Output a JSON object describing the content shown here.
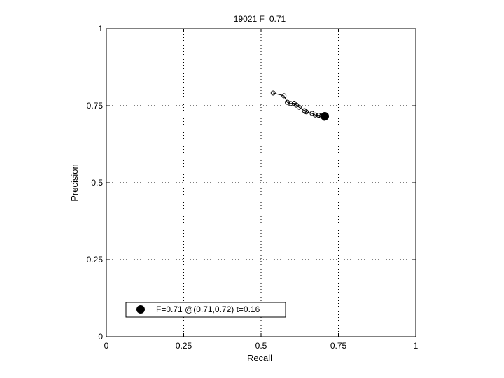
{
  "chart_data": {
    "type": "scatter",
    "title": "19021 F=0.71",
    "xlabel": "Recall",
    "ylabel": "Precision",
    "xlim": [
      0,
      1
    ],
    "ylim": [
      0,
      1
    ],
    "xticks": [
      0,
      0.25,
      0.5,
      0.75,
      1
    ],
    "yticks": [
      0,
      0.25,
      0.5,
      0.75,
      1
    ],
    "xtick_labels": [
      "0",
      "0.25",
      "0.5",
      "0.75",
      "1"
    ],
    "ytick_labels": [
      "0",
      "0.25",
      "0.5",
      "0.75",
      "1"
    ],
    "grid": true,
    "legend_position": "bottom-left",
    "series": [
      {
        "style": "line-with-circle-markers",
        "color": "#000000",
        "x": [
          0.539,
          0.574,
          0.585,
          0.596,
          0.607,
          0.614,
          0.623,
          0.64,
          0.646,
          0.665,
          0.675,
          0.686,
          0.695,
          0.705
        ],
        "y": [
          0.791,
          0.782,
          0.761,
          0.757,
          0.758,
          0.752,
          0.745,
          0.734,
          0.73,
          0.725,
          0.72,
          0.719,
          0.716,
          0.709
        ]
      }
    ],
    "best_point": {
      "name": "F=0.71 @(0.71,0.72) t=0.16",
      "x": 0.706,
      "y": 0.716,
      "color": "#000000"
    }
  }
}
